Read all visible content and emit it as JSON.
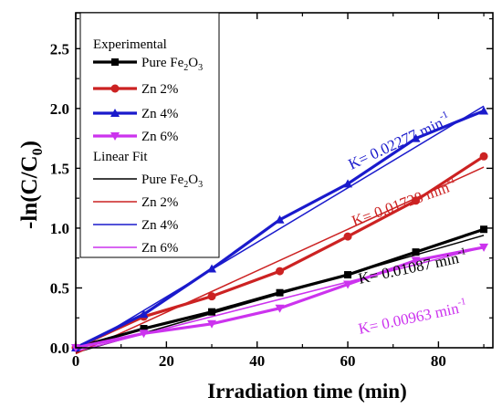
{
  "chart_data": {
    "type": "line",
    "xlabel": "Irradiation time (min)",
    "ylabel_main": "-ln(C/C",
    "ylabel_sub": "0",
    "ylabel_close": ")",
    "xlim": [
      0,
      92
    ],
    "ylim": [
      0,
      2.8
    ],
    "xticks": [
      0,
      20,
      40,
      60,
      80
    ],
    "yticks": [
      0.0,
      0.5,
      1.0,
      1.5,
      2.0,
      2.5
    ],
    "ytick_labels": [
      "0.0",
      "0.5",
      "1.0",
      "1.5",
      "2.0",
      "2.5"
    ],
    "legend": {
      "position": "top-left",
      "experimental_header": "Experimental",
      "fit_header": "Linear Fit"
    },
    "series": [
      {
        "name_main": "Pure Fe",
        "name_sub": "2",
        "name_tail": "O",
        "name_sub2": "3",
        "color": "#000000",
        "marker": "square",
        "x": [
          0,
          15,
          30,
          45,
          60,
          75,
          90
        ],
        "values": [
          0.0,
          0.16,
          0.3,
          0.46,
          0.61,
          0.8,
          0.99
        ]
      },
      {
        "name": "Zn 2%",
        "color": "#cc2222",
        "marker": "circle",
        "x": [
          0,
          15,
          30,
          45,
          60,
          75,
          90
        ],
        "values": [
          0.0,
          0.26,
          0.43,
          0.64,
          0.93,
          1.23,
          1.6
        ]
      },
      {
        "name": "Zn 4%",
        "color": "#1a1acc",
        "marker": "triangle-up",
        "x": [
          0,
          15,
          30,
          45,
          60,
          75,
          90
        ],
        "values": [
          0.0,
          0.28,
          0.66,
          1.07,
          1.37,
          1.75,
          1.98
        ]
      },
      {
        "name": "Zn 6%",
        "color": "#cc33ee",
        "marker": "triangle-down",
        "x": [
          0,
          15,
          30,
          45,
          60,
          75,
          90
        ],
        "values": [
          0.0,
          0.12,
          0.2,
          0.33,
          0.53,
          0.73,
          0.84
        ]
      }
    ],
    "fits": [
      {
        "name_main": "Pure Fe",
        "name_sub": "2",
        "name_tail": "O",
        "name_sub2": "3",
        "color": "#000000",
        "x": [
          0,
          90
        ],
        "values": [
          -0.04,
          0.94
        ]
      },
      {
        "name": "Zn 2%",
        "color": "#cc2222",
        "x": [
          0,
          90
        ],
        "values": [
          -0.05,
          1.51
        ]
      },
      {
        "name": "Zn 4%",
        "color": "#1a1acc",
        "x": [
          0,
          90
        ],
        "values": [
          -0.03,
          2.02
        ]
      },
      {
        "name": "Zn 6%",
        "color": "#cc33ee",
        "x": [
          0,
          90
        ],
        "values": [
          -0.03,
          0.84
        ]
      }
    ],
    "annotations": [
      {
        "text": "K= 0.02277 min",
        "sup": "-1",
        "color": "#1a1acc",
        "rotation": -25
      },
      {
        "text": "K= 0.01728 min",
        "sup": "-1",
        "color": "#cc2222",
        "rotation": -20
      },
      {
        "text": "K= 0.01087 min",
        "sup": "-1",
        "color": "#000000",
        "rotation": -12
      },
      {
        "text": "K= 0.00963 min",
        "sup": "-1",
        "color": "#cc33ee",
        "rotation": -12
      }
    ]
  }
}
